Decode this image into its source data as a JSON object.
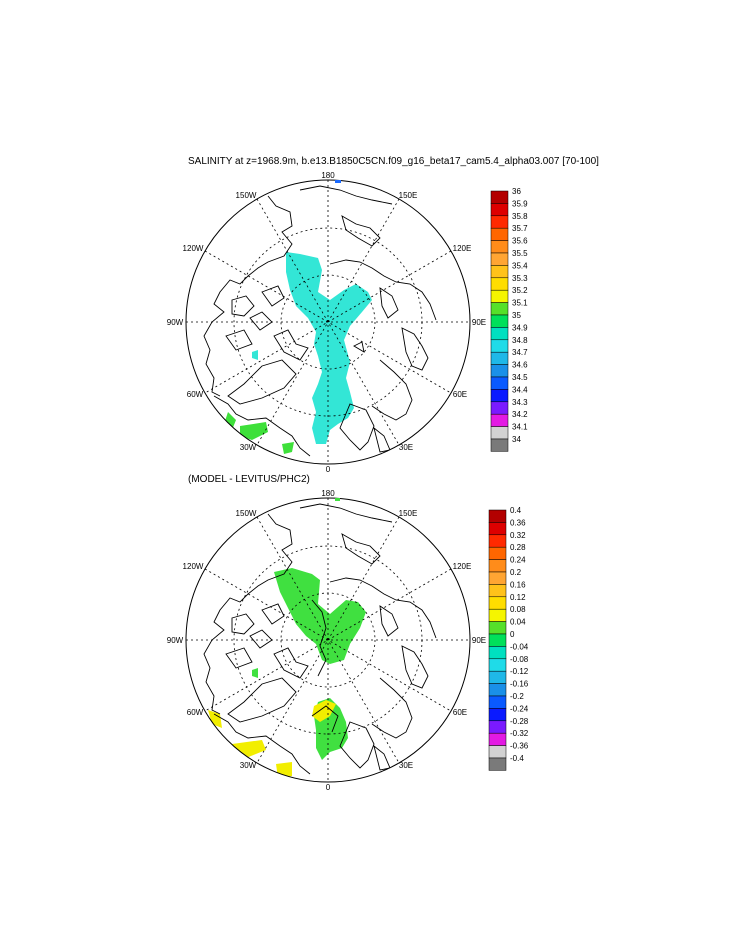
{
  "panels": [
    {
      "title": "SALINITY at z=1968.9m, b.e13.B1850C5CN.f09_g16_beta17_cam5.4_alpha03.007 [70-100]",
      "lon_labels": [
        "180",
        "150E",
        "120E",
        "90E",
        "60E",
        "30E",
        "0",
        "30W",
        "60W",
        "90W",
        "120W",
        "150W"
      ],
      "colorbar": {
        "labels": [
          "36",
          "35.9",
          "35.8",
          "35.7",
          "35.6",
          "35.5",
          "35.4",
          "35.3",
          "35.2",
          "35.1",
          "35",
          "34.9",
          "34.8",
          "34.7",
          "34.6",
          "34.5",
          "34.4",
          "34.3",
          "34.2",
          "34.1",
          "34"
        ],
        "colors": [
          "#b30000",
          "#dd0000",
          "#ff2a00",
          "#ff6600",
          "#ff8c1a",
          "#ffa533",
          "#ffc21a",
          "#ffdd00",
          "#f5f500",
          "#55e02a",
          "#00e05a",
          "#00e0c0",
          "#1fdbe8",
          "#1fb8e8",
          "#1a90e8",
          "#0a5aff",
          "#0a1aff",
          "#7a1aff",
          "#e31ae3",
          "#d2d2d2",
          "#7a7a7a"
        ]
      }
    },
    {
      "title": "(MODEL - LEVITUS/PHC2)",
      "lon_labels": [
        "180",
        "150E",
        "120E",
        "90E",
        "60E",
        "30E",
        "0",
        "30W",
        "60W",
        "90W",
        "120W",
        "150W"
      ],
      "colorbar": {
        "labels": [
          "0.4",
          "0.36",
          "0.32",
          "0.28",
          "0.24",
          "0.2",
          "0.16",
          "0.12",
          "0.08",
          "0.04",
          "0",
          "-0.04",
          "-0.08",
          "-0.12",
          "-0.16",
          "-0.2",
          "-0.24",
          "-0.28",
          "-0.32",
          "-0.36",
          "-0.4"
        ],
        "colors": [
          "#b30000",
          "#dd0000",
          "#ff2a00",
          "#ff6600",
          "#ff8c1a",
          "#ffa533",
          "#ffc21a",
          "#ffdd00",
          "#f5f500",
          "#55e02a",
          "#00e05a",
          "#00e0c0",
          "#1fdbe8",
          "#1fb8e8",
          "#1a90e8",
          "#0a5aff",
          "#0a1aff",
          "#7a1aff",
          "#e31ae3",
          "#d2d2d2",
          "#7a7a7a"
        ]
      }
    }
  ],
  "field_colors": {
    "salinity_main": "#33e6d6",
    "salinity_atlantic": "#3ee03a",
    "diff_main": "#40e040",
    "diff_positive": "#f2ee00"
  }
}
